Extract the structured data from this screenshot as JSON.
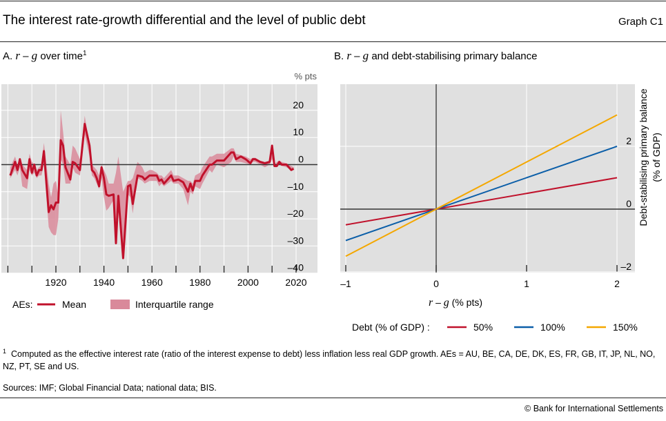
{
  "header": {
    "title": "The interest rate-growth differential and the level of public debt",
    "graph_id": "Graph C1"
  },
  "panel_a": {
    "title_prefix": "A.",
    "title_r": "r",
    "title_dash": " – ",
    "title_g": "g",
    "title_suffix": " over time",
    "title_sup": "1",
    "unit": "% pts",
    "legend": {
      "prefix": "AEs:",
      "mean": "Mean",
      "iqr": "Interquartile range"
    }
  },
  "panel_b": {
    "title_prefix": "B.",
    "title_r": "r",
    "title_dash": " – ",
    "title_g": "g",
    "title_suffix": " and debt-stabilising primary balance",
    "xlabel_r": "r",
    "xlabel_dash": " – ",
    "xlabel_g": "g",
    "xlabel_suffix": " (% pts)",
    "ylabel_line1": "Debt-stabilising primary balance",
    "ylabel_line2": "(% of GDP)",
    "legend_title": "Debt (% of GDP) :"
  },
  "chart_data": [
    {
      "type": "line",
      "title": "A. r – g over time",
      "ylabel": "% pts",
      "xlabel": "",
      "ylim": [
        -40,
        30
      ],
      "xlim": [
        1897,
        2029
      ],
      "xticks": [
        1900,
        1910,
        1920,
        1930,
        1940,
        1950,
        1960,
        1970,
        1980,
        1990,
        2000,
        2010,
        2020
      ],
      "xtick_labels": [
        "1920",
        "1940",
        "1960",
        "1980",
        "2000",
        "2020"
      ],
      "yticks": [
        -40,
        -30,
        -20,
        -10,
        0,
        10,
        20
      ],
      "ytick_labels": [
        "–40",
        "–30",
        "–20",
        "–10",
        "0",
        "10",
        "20"
      ],
      "colors": {
        "mean": "#c0112b",
        "iqr": "#d9899a"
      },
      "x": [
        1901,
        1903,
        1904,
        1905,
        1906,
        1908,
        1909,
        1910,
        1911,
        1912,
        1913,
        1914,
        1915,
        1917,
        1918,
        1919,
        1920,
        1921,
        1922,
        1923,
        1924,
        1926,
        1927,
        1928,
        1930,
        1932,
        1934,
        1935,
        1936,
        1937,
        1938,
        1939,
        1940,
        1941,
        1942,
        1944,
        1945,
        1946,
        1948,
        1950,
        1951,
        1952,
        1954,
        1956,
        1957,
        1959,
        1960,
        1962,
        1963,
        1964,
        1965,
        1968,
        1969,
        1971,
        1973,
        1975,
        1976,
        1977,
        1978,
        1980,
        1981,
        1984,
        1985,
        1987,
        1990,
        1993,
        1994,
        1995,
        1997,
        1999,
        2001,
        2002,
        2003,
        2005,
        2007,
        2009,
        2010,
        2011,
        2012,
        2013,
        2014,
        2016,
        2018,
        2019
      ],
      "series": [
        {
          "name": "Mean",
          "values": [
            -4,
            1,
            -2,
            2,
            -2,
            -5,
            2,
            -3,
            0,
            -4,
            -2,
            -2,
            5,
            -17.5,
            -15,
            -16.5,
            -14,
            -14,
            9,
            7,
            -1,
            -5.5,
            1,
            0.5,
            -2,
            15,
            7,
            -2,
            -3,
            -5,
            -8,
            -1,
            -5,
            -11,
            -11.5,
            -11,
            -29,
            -11.5,
            -34.5,
            -8,
            -7.5,
            -14.5,
            -4,
            -4.5,
            -5.5,
            -4,
            -4,
            -4,
            -6,
            -5.5,
            -7,
            -4,
            -6,
            -5.5,
            -6.5,
            -10,
            -7,
            -9.5,
            -6,
            -6,
            -4,
            0,
            0,
            1.5,
            1.5,
            4.5,
            4.5,
            2,
            3,
            2,
            0.5,
            2,
            2,
            1,
            0.5,
            1,
            7,
            -0.5,
            -0.5,
            1,
            0,
            0,
            -2,
            -1.5
          ]
        },
        {
          "name": "Interquartile range low",
          "values": [
            -5,
            -2,
            -4,
            -1,
            -8,
            -9,
            -2,
            -4,
            -3,
            -5,
            -4,
            -4,
            0,
            -23,
            -25,
            -26,
            -26,
            -20,
            2,
            0,
            -7,
            -7,
            -1,
            -3,
            -4,
            11,
            3,
            -4,
            -5,
            -7,
            -9,
            -5,
            -12,
            -17,
            -16,
            -13,
            -29,
            -14,
            -34,
            -11,
            -12,
            -18,
            -5,
            -6,
            -7,
            -6,
            -6,
            -6,
            -8,
            -7,
            -8,
            -6,
            -7,
            -7,
            -9,
            -15,
            -10,
            -11,
            -8,
            -9,
            -7,
            -2,
            -3,
            0,
            -1,
            1,
            3,
            1,
            1,
            0.5,
            0,
            1,
            1,
            0,
            -1,
            0,
            2,
            -1,
            -1,
            0,
            -0.5,
            -1,
            -2,
            -2
          ]
        },
        {
          "name": "Interquartile range high",
          "values": [
            -1,
            3,
            0,
            2,
            0,
            -2,
            4,
            1,
            0,
            -2,
            -1,
            0,
            8,
            -7,
            -12,
            -7,
            -6,
            -12,
            20,
            12,
            3,
            0,
            7,
            6,
            2,
            18,
            7,
            0,
            -1,
            -2,
            -4,
            0,
            -2,
            -4,
            -7,
            -7,
            -3,
            3,
            -10,
            -6,
            -6,
            -5,
            1,
            -1,
            -3,
            -2,
            -2,
            -3,
            -4,
            -4,
            -5,
            -2,
            -4,
            -4,
            -5,
            -6,
            -6,
            -7,
            -4,
            -3,
            -1,
            3,
            3,
            4,
            4,
            6,
            6,
            4,
            3.5,
            3,
            2,
            2.5,
            2.5,
            1.5,
            1,
            1.5,
            7.5,
            0,
            1,
            1.5,
            1,
            0.5,
            -0.5,
            -1
          ]
        }
      ]
    },
    {
      "type": "line",
      "title": "B. r – g and debt-stabilising primary balance",
      "xlabel": "r – g (% pts)",
      "ylabel": "Debt-stabilising primary balance (% of GDP)",
      "xlim": [
        -1.06,
        2.2
      ],
      "ylim": [
        -2,
        4
      ],
      "xticks": [
        -1,
        0,
        1,
        2
      ],
      "xtick_labels": [
        "–1",
        "0",
        "1",
        "2"
      ],
      "yticks": [
        -2,
        0,
        2
      ],
      "ytick_labels": [
        "–2",
        "0",
        "2"
      ],
      "x": [
        -1,
        2
      ],
      "series": [
        {
          "name": "50%",
          "color": "#c0112b",
          "values": [
            -0.5,
            1
          ]
        },
        {
          "name": "100%",
          "color": "#0b5ea8",
          "values": [
            -1,
            2
          ]
        },
        {
          "name": "150%",
          "color": "#f4a700",
          "values": [
            -1.5,
            3
          ]
        }
      ]
    }
  ],
  "footnote": {
    "mark": "1",
    "text": "Computed as the effective interest rate (ratio of the interest expense to debt) less inflation less real GDP growth. AEs = AU, BE, CA, DE, DK, ES, FR, GB, IT, JP, NL, NO, NZ, PT, SE and US."
  },
  "sources": "Sources: IMF; Global Financial Data; national data; BIS.",
  "copyright": "© Bank for International Settlements"
}
